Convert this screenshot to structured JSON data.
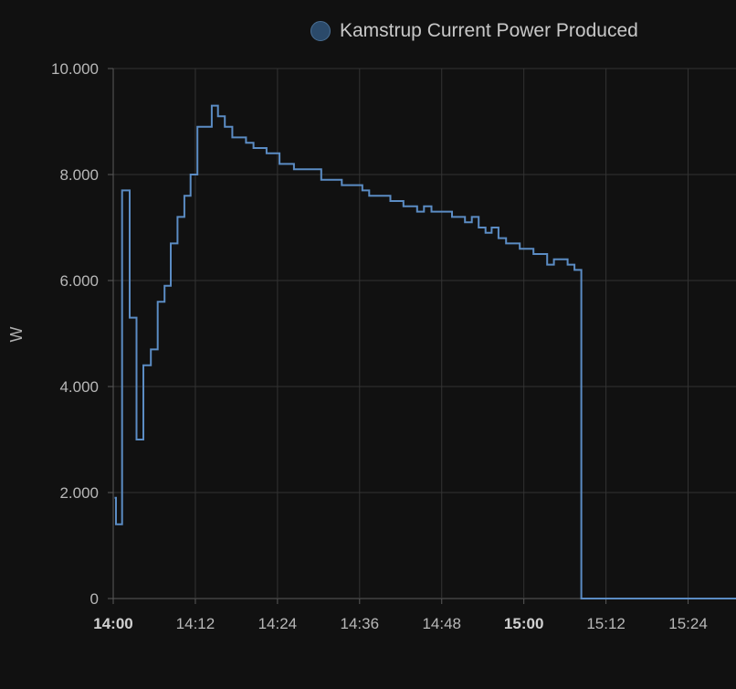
{
  "chart_data": {
    "type": "line",
    "line_style": "step",
    "ylabel": "W",
    "xlabel": "",
    "ylim": [
      0,
      10000
    ],
    "yticks": [
      {
        "value": 0,
        "label": "0"
      },
      {
        "value": 2000,
        "label": "2.000"
      },
      {
        "value": 4000,
        "label": "4.000"
      },
      {
        "value": 6000,
        "label": "6.000"
      },
      {
        "value": 8000,
        "label": "8.000"
      },
      {
        "value": 10000,
        "label": "10.000"
      }
    ],
    "xlim_minutes": [
      0,
      91
    ],
    "xticks": [
      {
        "minute": 0,
        "label": "14:00",
        "bold": true
      },
      {
        "minute": 12,
        "label": "14:12",
        "bold": false
      },
      {
        "minute": 24,
        "label": "14:24",
        "bold": false
      },
      {
        "minute": 36,
        "label": "14:36",
        "bold": false
      },
      {
        "minute": 48,
        "label": "14:48",
        "bold": false
      },
      {
        "minute": 60,
        "label": "15:00",
        "bold": true
      },
      {
        "minute": 72,
        "label": "15:12",
        "bold": false
      },
      {
        "minute": 84,
        "label": "15:24",
        "bold": false
      }
    ],
    "grid": true,
    "legend_position": "top",
    "series": [
      {
        "name": "Kamstrup Current Power Produced",
        "color": "#5b8cc4",
        "points": [
          [
            0.2,
            1900
          ],
          [
            0.4,
            1400
          ],
          [
            1.3,
            7700
          ],
          [
            2.4,
            5300
          ],
          [
            3.4,
            3000
          ],
          [
            4.4,
            4400
          ],
          [
            5.5,
            4700
          ],
          [
            6.5,
            5600
          ],
          [
            7.5,
            5900
          ],
          [
            8.4,
            6700
          ],
          [
            9.4,
            7200
          ],
          [
            10.4,
            7600
          ],
          [
            11.3,
            8000
          ],
          [
            12.3,
            8900
          ],
          [
            14.4,
            9300
          ],
          [
            15.3,
            9100
          ],
          [
            16.3,
            8900
          ],
          [
            17.4,
            8700
          ],
          [
            19.4,
            8600
          ],
          [
            20.5,
            8500
          ],
          [
            22.4,
            8400
          ],
          [
            24.3,
            8200
          ],
          [
            26.4,
            8100
          ],
          [
            30.4,
            7900
          ],
          [
            33.4,
            7800
          ],
          [
            36.4,
            7700
          ],
          [
            37.4,
            7600
          ],
          [
            40.5,
            7500
          ],
          [
            42.4,
            7400
          ],
          [
            44.4,
            7300
          ],
          [
            45.4,
            7400
          ],
          [
            46.5,
            7300
          ],
          [
            49.5,
            7200
          ],
          [
            51.4,
            7100
          ],
          [
            52.4,
            7200
          ],
          [
            53.4,
            7000
          ],
          [
            54.4,
            6900
          ],
          [
            55.3,
            7000
          ],
          [
            56.3,
            6800
          ],
          [
            57.4,
            6700
          ],
          [
            59.4,
            6600
          ],
          [
            61.4,
            6500
          ],
          [
            63.4,
            6300
          ],
          [
            64.4,
            6400
          ],
          [
            66.4,
            6300
          ],
          [
            67.4,
            6200
          ],
          [
            68.4,
            0
          ],
          [
            91,
            0
          ]
        ]
      }
    ]
  }
}
